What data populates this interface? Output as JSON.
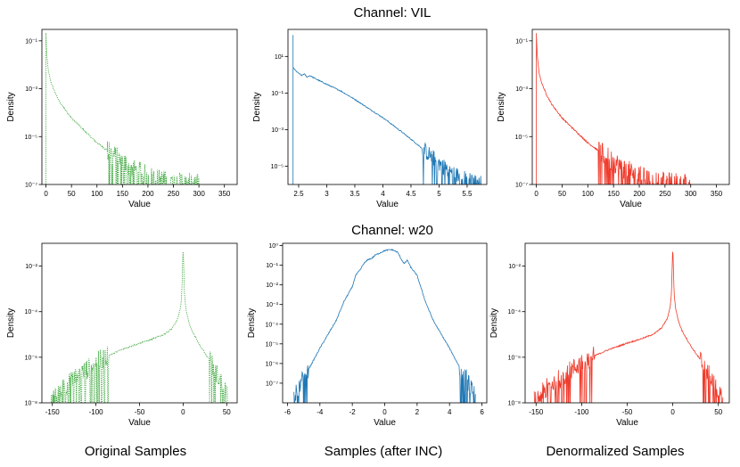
{
  "page": {
    "row_titles": [
      "Channel: VIL",
      "Channel: w20"
    ],
    "column_captions": [
      "Original Samples",
      "Samples (after INC)",
      "Denormalized Samples"
    ]
  },
  "chart_data": [
    {
      "type": "line",
      "row_title": "Channel: VIL",
      "color": "#2ca02c",
      "style": "dotted",
      "xlabel": "Value",
      "ylabel": "Density",
      "yscale": "log",
      "xlim": [
        -8,
        375
      ],
      "ylim": [
        1e-07,
        0.3
      ],
      "xticks": [
        0,
        50,
        100,
        150,
        200,
        250,
        300,
        350
      ],
      "yticks": [
        {
          "v": 0.1,
          "label": "10⁻¹"
        },
        {
          "v": 0.001,
          "label": "10⁻³"
        },
        {
          "v": 1e-05,
          "label": "10⁻⁵"
        },
        {
          "v": 1e-07,
          "label": "10⁻⁷"
        }
      ],
      "points": [
        [
          0,
          0.21
        ],
        [
          1,
          0.05
        ],
        [
          2,
          0.02
        ],
        [
          5,
          0.005
        ],
        [
          10,
          0.0018
        ],
        [
          20,
          0.00055
        ],
        [
          30,
          0.00022
        ],
        [
          50,
          6e-05
        ],
        [
          75,
          1.8e-05
        ],
        [
          100,
          5.5e-06
        ],
        [
          125,
          2.2e-06
        ],
        [
          150,
          9e-07
        ],
        [
          175,
          4e-07
        ],
        [
          200,
          2.2e-07
        ],
        [
          225,
          1.5e-07
        ],
        [
          250,
          1.2e-07
        ],
        [
          280,
          1.1e-07
        ],
        [
          300,
          1e-07
        ]
      ],
      "spike_at": 0,
      "spike_top": 0.21,
      "noise_from": 120
    },
    {
      "type": "line",
      "row_title": "Channel: VIL",
      "color": "#1f77b4",
      "style": "solid",
      "xlabel": "Value",
      "ylabel": "Density",
      "yscale": "log",
      "xlim": [
        2.31,
        5.85
      ],
      "ylim": [
        1e-06,
        300
      ],
      "xticks": [
        2.5,
        3.0,
        3.5,
        4.0,
        4.5,
        5.0,
        5.5
      ],
      "yticks": [
        {
          "v": 10,
          "label": "10¹"
        },
        {
          "v": 0.1,
          "label": "10⁻¹"
        },
        {
          "v": 0.001,
          "label": "10⁻³"
        },
        {
          "v": 1e-05,
          "label": "10⁻⁵"
        }
      ],
      "points": [
        [
          2.4,
          2.5
        ],
        [
          2.45,
          1.6
        ],
        [
          2.5,
          1.2
        ],
        [
          2.55,
          0.9
        ],
        [
          2.6,
          1.1
        ],
        [
          2.65,
          0.75
        ],
        [
          2.7,
          0.9
        ],
        [
          2.8,
          0.6
        ],
        [
          3.0,
          0.3
        ],
        [
          3.25,
          0.13
        ],
        [
          3.5,
          0.045
        ],
        [
          3.75,
          0.014
        ],
        [
          4.0,
          0.0045
        ],
        [
          4.25,
          0.0012
        ],
        [
          4.5,
          0.0003
        ],
        [
          4.75,
          7e-05
        ],
        [
          5.0,
          1.5e-05
        ],
        [
          5.25,
          4e-06
        ],
        [
          5.5,
          1.8e-06
        ],
        [
          5.75,
          1.2e-06
        ]
      ],
      "spike_at": 2.4,
      "spike_top": 150,
      "noise_from": 4.7
    },
    {
      "type": "line",
      "row_title": "Channel: VIL",
      "color": "#ef3b2c",
      "style": "solid",
      "xlabel": "Value",
      "ylabel": "Density",
      "yscale": "log",
      "xlim": [
        -8,
        375
      ],
      "ylim": [
        1e-07,
        0.3
      ],
      "xticks": [
        0,
        50,
        100,
        150,
        200,
        250,
        300,
        350
      ],
      "yticks": [
        {
          "v": 0.1,
          "label": "10⁻¹"
        },
        {
          "v": 0.001,
          "label": "10⁻³"
        },
        {
          "v": 1e-05,
          "label": "10⁻⁵"
        },
        {
          "v": 1e-07,
          "label": "10⁻⁷"
        }
      ],
      "points": [
        [
          0,
          0.21
        ],
        [
          1,
          0.05
        ],
        [
          2,
          0.02
        ],
        [
          5,
          0.005
        ],
        [
          10,
          0.0018
        ],
        [
          20,
          0.00055
        ],
        [
          30,
          0.00022
        ],
        [
          50,
          6e-05
        ],
        [
          75,
          1.8e-05
        ],
        [
          100,
          5.5e-06
        ],
        [
          125,
          2.2e-06
        ],
        [
          150,
          9e-07
        ],
        [
          175,
          4e-07
        ],
        [
          200,
          2.2e-07
        ],
        [
          225,
          1.5e-07
        ],
        [
          250,
          1.2e-07
        ],
        [
          280,
          1.1e-07
        ],
        [
          300,
          1e-07
        ]
      ],
      "spike_at": 0,
      "spike_top": 0.21,
      "noise_from": 120
    },
    {
      "type": "line",
      "row_title": "Channel: w20",
      "color": "#2ca02c",
      "style": "dotted",
      "xlabel": "Value",
      "ylabel": "Density",
      "yscale": "log",
      "xlim": [
        -162,
        62
      ],
      "ylim": [
        1e-08,
        0.1
      ],
      "xticks": [
        -150,
        -100,
        -50,
        0,
        50
      ],
      "yticks": [
        {
          "v": 0.01,
          "label": "10⁻²"
        },
        {
          "v": 0.0001,
          "label": "10⁻⁴"
        },
        {
          "v": 1e-06,
          "label": "10⁻⁶"
        },
        {
          "v": 1e-08,
          "label": "10⁻⁸"
        }
      ],
      "points": [
        [
          -152,
          1.2e-08
        ],
        [
          -145,
          2e-08
        ],
        [
          -140,
          4e-08
        ],
        [
          -130,
          8e-08
        ],
        [
          -120,
          1.5e-07
        ],
        [
          -110,
          3e-07
        ],
        [
          -100,
          6e-07
        ],
        [
          -85,
          1.2e-06
        ],
        [
          -70,
          2.2e-06
        ],
        [
          -60,
          3e-06
        ],
        [
          -50,
          4.2e-06
        ],
        [
          -40,
          5.5e-06
        ],
        [
          -30,
          7.5e-06
        ],
        [
          -20,
          1.1e-05
        ],
        [
          -12,
          2e-05
        ],
        [
          -6,
          5e-05
        ],
        [
          -3,
          0.00015
        ],
        [
          -1.5,
          0.0006
        ],
        [
          0,
          0.08
        ],
        [
          1.5,
          0.0006
        ],
        [
          3,
          0.00015
        ],
        [
          6,
          4e-05
        ],
        [
          10,
          1.5e-05
        ],
        [
          20,
          3e-06
        ],
        [
          30,
          8e-07
        ],
        [
          40,
          1.5e-07
        ],
        [
          48,
          4e-08
        ],
        [
          55,
          1.2e-08
        ]
      ],
      "noise_ranges": [
        [
          -155,
          -85
        ],
        [
          30,
          58
        ]
      ]
    },
    {
      "type": "line",
      "row_title": "Channel: w20",
      "color": "#1f77b4",
      "style": "solid",
      "xlabel": "Value",
      "ylabel": "Density",
      "yscale": "log",
      "xlim": [
        -6.3,
        6.3
      ],
      "ylim": [
        1e-08,
        1.3
      ],
      "xticks": [
        -6,
        -4,
        -2,
        0,
        2,
        4,
        6
      ],
      "yticks": [
        {
          "v": 1,
          "label": "10⁰"
        },
        {
          "v": 0.1,
          "label": "10⁻¹"
        },
        {
          "v": 0.01,
          "label": "10⁻²"
        },
        {
          "v": 0.001,
          "label": "10⁻³"
        },
        {
          "v": 0.0001,
          "label": "10⁻⁴"
        },
        {
          "v": 1e-05,
          "label": "10⁻⁵"
        },
        {
          "v": 1e-06,
          "label": "10⁻⁶"
        },
        {
          "v": 1e-07,
          "label": "10⁻⁷"
        }
      ],
      "points": [
        [
          -5.6,
          2e-08
        ],
        [
          -5.3,
          6e-08
        ],
        [
          -5,
          2e-07
        ],
        [
          -4.5,
          1e-06
        ],
        [
          -4,
          6e-06
        ],
        [
          -3.5,
          3e-05
        ],
        [
          -3,
          0.00015
        ],
        [
          -2.5,
          0.0015
        ],
        [
          -2,
          0.008
        ],
        [
          -1.8,
          0.03
        ],
        [
          -1.5,
          0.06
        ],
        [
          -1.3,
          0.12
        ],
        [
          -1,
          0.2
        ],
        [
          -0.8,
          0.22
        ],
        [
          -0.6,
          0.32
        ],
        [
          -0.3,
          0.42
        ],
        [
          0,
          0.55
        ],
        [
          0.3,
          0.62
        ],
        [
          0.5,
          0.6
        ],
        [
          0.8,
          0.45
        ],
        [
          1,
          0.22
        ],
        [
          1.2,
          0.12
        ],
        [
          1.4,
          0.18
        ],
        [
          1.6,
          0.08
        ],
        [
          2,
          0.03
        ],
        [
          2.5,
          0.0015
        ],
        [
          3,
          0.00015
        ],
        [
          3.5,
          3e-05
        ],
        [
          4,
          6e-06
        ],
        [
          4.5,
          1e-06
        ],
        [
          5,
          2e-07
        ],
        [
          5.3,
          6e-08
        ],
        [
          5.6,
          2e-08
        ]
      ],
      "noise_ranges": [
        [
          -5.9,
          -4.7
        ],
        [
          4.6,
          5.9
        ]
      ]
    },
    {
      "type": "line",
      "row_title": "Channel: w20",
      "color": "#ef3b2c",
      "style": "solid",
      "xlabel": "Value",
      "ylabel": "Density",
      "yscale": "log",
      "xlim": [
        -162,
        62
      ],
      "ylim": [
        1e-08,
        0.1
      ],
      "xticks": [
        -150,
        -100,
        -50,
        0,
        50
      ],
      "yticks": [
        {
          "v": 0.01,
          "label": "10⁻²"
        },
        {
          "v": 0.0001,
          "label": "10⁻⁴"
        },
        {
          "v": 1e-06,
          "label": "10⁻⁶"
        },
        {
          "v": 1e-08,
          "label": "10⁻⁸"
        }
      ],
      "points": [
        [
          -152,
          1.2e-08
        ],
        [
          -145,
          2e-08
        ],
        [
          -140,
          4e-08
        ],
        [
          -130,
          8e-08
        ],
        [
          -120,
          1.5e-07
        ],
        [
          -110,
          3e-07
        ],
        [
          -100,
          6e-07
        ],
        [
          -85,
          1.2e-06
        ],
        [
          -70,
          2.2e-06
        ],
        [
          -60,
          3e-06
        ],
        [
          -50,
          4.2e-06
        ],
        [
          -40,
          5.5e-06
        ],
        [
          -30,
          7.5e-06
        ],
        [
          -20,
          1.1e-05
        ],
        [
          -12,
          2e-05
        ],
        [
          -6,
          5e-05
        ],
        [
          -3,
          0.00015
        ],
        [
          -1.5,
          0.0006
        ],
        [
          0,
          0.08
        ],
        [
          1.5,
          0.0006
        ],
        [
          3,
          0.00015
        ],
        [
          6,
          4e-05
        ],
        [
          10,
          1.5e-05
        ],
        [
          20,
          3e-06
        ],
        [
          30,
          8e-07
        ],
        [
          40,
          1.5e-07
        ],
        [
          48,
          4e-08
        ],
        [
          55,
          1.2e-08
        ]
      ],
      "noise_ranges": [
        [
          -155,
          -85
        ],
        [
          30,
          58
        ]
      ]
    }
  ]
}
